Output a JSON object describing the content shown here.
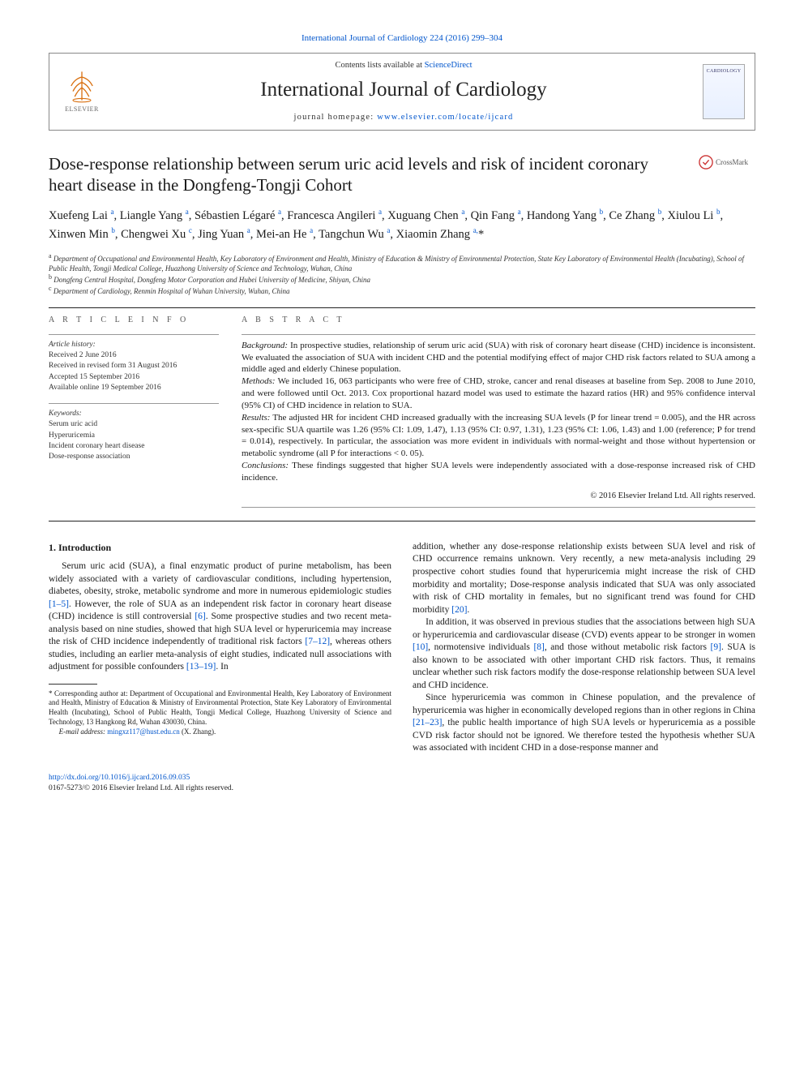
{
  "top": {
    "citation_journal": "International Journal of Cardiology 224 (2016) 299–304",
    "citation_url_text": "International Journal of Cardiology 224 (2016) 299–304"
  },
  "header": {
    "contents_prefix": "Contents lists available at ",
    "contents_link": "ScienceDirect",
    "journal_title": "International Journal of Cardiology",
    "homepage_prefix": "journal homepage: ",
    "homepage_link": "www.elsevier.com/locate/ijcard",
    "publisher_logo_text": "ELSEVIER",
    "cover_label": "CARDIOLOGY"
  },
  "crossmark": {
    "label": "CrossMark"
  },
  "article": {
    "title": "Dose-response relationship between serum uric acid levels and risk of incident coronary heart disease in the Dongfeng-Tongji Cohort",
    "authors_html": "Xuefeng Lai <sup>a</sup>, Liangle Yang <sup>a</sup>, Sébastien Légaré <sup>a</sup>, Francesca Angileri <sup>a</sup>, Xuguang Chen <sup>a</sup>, Qin Fang <sup>a</sup>, Handong Yang <sup>b</sup>, Ce Zhang <sup>b</sup>, Xiulou Li <sup>b</sup>, Xinwen Min <sup>b</sup>, Chengwei Xu <sup>c</sup>, Jing Yuan <sup>a</sup>, Mei-an He <sup>a</sup>, Tangchun Wu <sup>a</sup>, Xiaomin Zhang <sup>a,</sup>*",
    "affiliations": [
      "a  Department of Occupational and Environmental Health, Key Laboratory of Environment and Health, Ministry of Education & Ministry of Environmental Protection, State Key Laboratory of Environmental Health (Incubating), School of Public Health, Tongji Medical College, Huazhong University of Science and Technology, Wuhan, China",
      "b  Dongfeng Central Hospital, Dongfeng Motor Corporation and Hubei University of Medicine, Shiyan, China",
      "c  Department of Cardiology, Renmin Hospital of Wuhan University, Wuhan, China"
    ]
  },
  "info": {
    "section_label": "A R T I C L E   I N F O",
    "history_label": "Article history:",
    "history": [
      "Received 2 June 2016",
      "Received in revised form 31 August 2016",
      "Accepted 15 September 2016",
      "Available online 19 September 2016"
    ],
    "keywords_label": "Keywords:",
    "keywords": [
      "Serum uric acid",
      "Hyperuricemia",
      "Incident coronary heart disease",
      "Dose-response association"
    ]
  },
  "abstract": {
    "section_label": "A B S T R A C T",
    "background_label": "Background:",
    "background": " In prospective studies, relationship of serum uric acid (SUA) with risk of coronary heart disease (CHD) incidence is inconsistent. We evaluated the association of SUA with incident CHD and the potential modifying effect of major CHD risk factors related to SUA among a middle aged and elderly Chinese population.",
    "methods_label": "Methods:",
    "methods": " We included 16, 063 participants who were free of CHD, stroke, cancer and renal diseases at baseline from Sep. 2008 to June 2010, and were followed until Oct. 2013. Cox proportional hazard model was used to estimate the hazard ratios (HR) and 95% confidence interval (95% CI) of CHD incidence in relation to SUA.",
    "results_label": "Results:",
    "results": " The adjusted HR for incident CHD increased gradually with the increasing SUA levels (P for linear trend = 0.005), and the HR across sex-specific SUA quartile was 1.26 (95% CI: 1.09, 1.47), 1.13 (95% CI: 0.97, 1.31), 1.23 (95% CI: 1.06, 1.43) and 1.00 (reference; P for trend = 0.014), respectively. In particular, the association was more evident in individuals with normal-weight and those without hypertension or metabolic syndrome (all P for interactions < 0. 05).",
    "conclusions_label": "Conclusions:",
    "conclusions": " These findings suggested that higher SUA levels were independently associated with a dose-response increased risk of CHD incidence.",
    "copyright": "© 2016 Elsevier Ireland Ltd. All rights reserved."
  },
  "body": {
    "intro_heading": "1. Introduction",
    "p1": "Serum uric acid (SUA), a final enzymatic product of purine metabolism, has been widely associated with a variety of cardiovascular conditions, including hypertension, diabetes, obesity, stroke, metabolic syndrome and more in numerous epidemiologic studies [1–5]. However, the role of SUA as an independent risk factor in coronary heart disease (CHD) incidence is still controversial [6]. Some prospective studies and two recent meta-analysis based on nine studies, showed that high SUA level or hyperuricemia may increase the risk of CHD incidence independently of traditional risk factors [7–12], whereas others studies, including an earlier meta-analysis of eight studies, indicated null associations with adjustment for possible confounders [13–19]. In",
    "p2": "addition, whether any dose-response relationship exists between SUA level and risk of CHD occurrence remains unknown. Very recently, a new meta-analysis including 29 prospective cohort studies found that hyperuricemia might increase the risk of CHD morbidity and mortality; Dose-response analysis indicated that SUA was only associated with risk of CHD mortality in females, but no significant trend was found for CHD morbidity [20].",
    "p3": "In addition, it was observed in previous studies that the associations between high SUA or hyperuricemia and cardiovascular disease (CVD) events appear to be stronger in women [10], normotensive individuals [8], and those without metabolic risk factors [9]. SUA is also known to be associated with other important CHD risk factors. Thus, it remains unclear whether such risk factors modify the dose-response relationship between SUA level and CHD incidence.",
    "p4": "Since hyperuricemia was common in Chinese population, and the prevalence of hyperuricemia was higher in economically developed regions than in other regions in China [21–23], the public health importance of high SUA levels or hyperuricemia as a possible CVD risk factor should not be ignored. We therefore tested the hypothesis whether SUA was associated with incident CHD in a dose-response manner and"
  },
  "footnote": {
    "corresponding": "* Corresponding author at: Department of Occupational and Environmental Health, Key Laboratory of Environment and Health, Ministry of Education & Ministry of Environmental Protection, State Key Laboratory of Environmental Health (Incubating), School of Public Health, Tongji Medical College, Huazhong University of Science and Technology, 13 Hangkong Rd, Wuhan 430030, China.",
    "email_label": "E-mail address: ",
    "email": "mingxz117@hust.edu.cn",
    "email_suffix": " (X. Zhang)."
  },
  "footer": {
    "doi": "http://dx.doi.org/10.1016/j.ijcard.2016.09.035",
    "issn_line": "0167-5273/© 2016 Elsevier Ireland Ltd. All rights reserved."
  },
  "refs": {
    "r1_5": "[1–5]",
    "r6": "[6]",
    "r7_12": "[7–12]",
    "r13_19": "[13–19]",
    "r20": "[20]",
    "r10": "[10]",
    "r8": "[8]",
    "r9": "[9]",
    "r21_23": "[21–23]"
  }
}
